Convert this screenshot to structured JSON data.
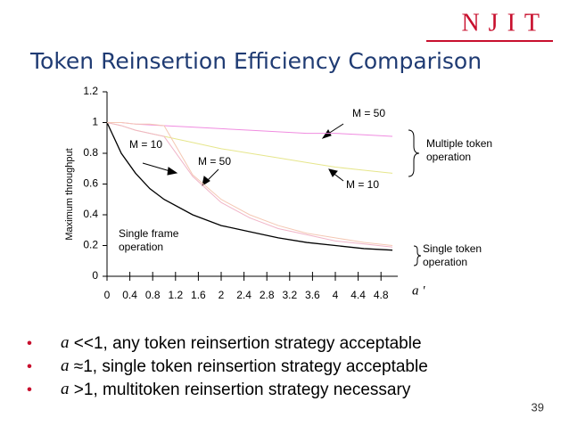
{
  "logo": "NJIT",
  "slide_title": "Token Reinsertion Efficiency Comparison",
  "chart_data": {
    "type": "line",
    "y_label": "Maximum throughput",
    "x_label": "a '",
    "x": [
      0,
      0.25,
      0.5,
      0.75,
      1,
      1.5,
      2,
      2.5,
      3,
      3.5,
      4,
      4.5,
      5
    ],
    "xlim": [
      0,
      5
    ],
    "xticks": [
      0,
      0.4,
      0.8,
      1.2,
      1.6,
      2,
      2.4,
      2.8,
      3.2,
      3.6,
      4,
      4.4,
      4.8
    ],
    "ylim": [
      0,
      1.2
    ],
    "yticks": [
      0,
      0.2,
      0.4,
      0.6,
      0.8,
      1,
      1.2
    ],
    "series": [
      {
        "color": "#000000",
        "values": [
          1,
          0.8,
          0.67,
          0.57,
          0.5,
          0.4,
          0.33,
          0.29,
          0.25,
          0.22,
          0.2,
          0.18,
          0.17
        ]
      },
      {
        "color": "#f08ce0",
        "values": [
          1,
          1.0,
          0.99,
          0.985,
          0.98,
          0.97,
          0.96,
          0.95,
          0.94,
          0.93,
          0.93,
          0.92,
          0.91
        ]
      },
      {
        "color": "#e6e68c",
        "values": [
          1,
          0.98,
          0.95,
          0.93,
          0.91,
          0.87,
          0.83,
          0.8,
          0.77,
          0.74,
          0.71,
          0.69,
          0.67
        ]
      },
      {
        "color": "#f0b4c8",
        "values": [
          1,
          0.98,
          0.95,
          0.93,
          0.91,
          0.65,
          0.48,
          0.38,
          0.31,
          0.27,
          0.23,
          0.21,
          0.19
        ]
      },
      {
        "color": "#f4c8b4",
        "values": [
          1,
          1.0,
          0.99,
          0.99,
          0.98,
          0.66,
          0.5,
          0.4,
          0.33,
          0.28,
          0.25,
          0.22,
          0.2
        ]
      }
    ],
    "annotations": [
      {
        "lines": [
          "M = 50"
        ]
      },
      {
        "lines": [
          "M = 10"
        ]
      },
      {
        "lines": [
          "M = 50"
        ]
      },
      {
        "lines": [
          "M = 10"
        ]
      },
      {
        "lines": [
          "Single frame",
          "operation"
        ]
      },
      {
        "lines": [
          "Multiple token",
          "operation"
        ]
      },
      {
        "lines": [
          "Single token",
          "operation"
        ]
      }
    ]
  },
  "bullets": [
    {
      "symbol": "a",
      "text": " <<1,  any token reinsertion strategy acceptable"
    },
    {
      "symbol": "a",
      "text": " ≈1,  single token reinsertion strategy acceptable"
    },
    {
      "symbol": "a",
      "text": " >1,  multitoken reinsertion strategy necessary"
    }
  ],
  "page_number": "39"
}
